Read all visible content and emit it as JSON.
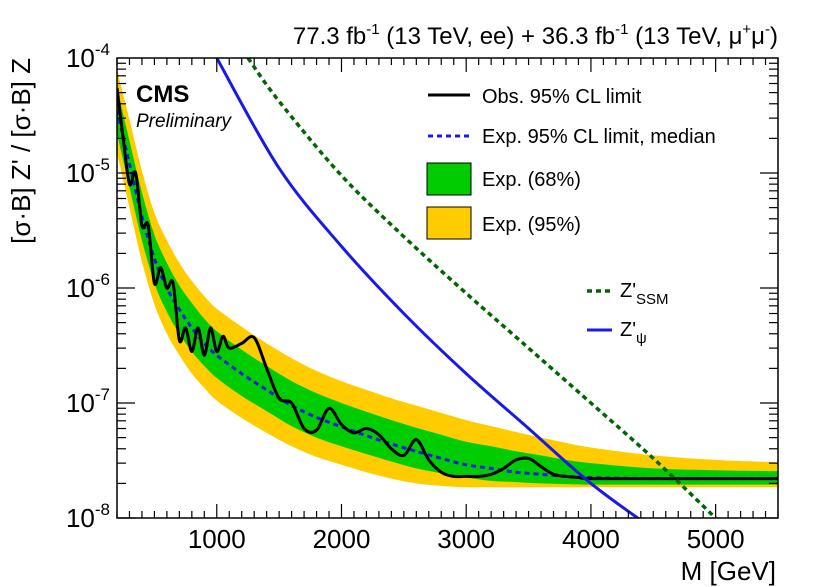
{
  "header": {
    "lumi_ee": "77.3 fb",
    "lumi_ee_exp": "-1",
    "energy_ee": " (13 TeV, ee) + ",
    "lumi_mm": "36.3 fb",
    "lumi_mm_exp": "-1",
    "energy_mm": " (13 TeV, μ",
    "mu_plus": "+",
    "mu_mid": "μ",
    "mu_minus": "-",
    "close": ")"
  },
  "cms_label": "CMS",
  "cms_sublabel": "Preliminary",
  "colors": {
    "observed": "#000000",
    "expected": "#1a1ae6",
    "band68": "#00cc00",
    "band95": "#ffcc00",
    "zssm": "#006600",
    "zpsi": "#1a1ae6"
  },
  "chart_data": {
    "type": "line",
    "xlabel": "M [GeV]",
    "ylabel": "[σ·B] Z' / [σ·B] Z",
    "xlim": [
      200,
      5500
    ],
    "ylim": [
      1e-08,
      0.0001
    ],
    "yscale": "log",
    "xticks": [
      1000,
      2000,
      3000,
      4000,
      5000
    ],
    "yticks": [
      {
        "value": 0.0001,
        "base": "10",
        "exp": "-4"
      },
      {
        "value": 1e-05,
        "base": "10",
        "exp": "-5"
      },
      {
        "value": 1e-06,
        "base": "10",
        "exp": "-6"
      },
      {
        "value": 1e-07,
        "base": "10",
        "exp": "-7"
      },
      {
        "value": 1e-08,
        "base": "10",
        "exp": "-8"
      }
    ],
    "legend": {
      "position": "top-right",
      "entries": [
        {
          "key": "observed",
          "label": "Obs. 95% CL limit"
        },
        {
          "key": "expected",
          "label": "Exp. 95% CL limit, median"
        },
        {
          "key": "band68",
          "label": "Exp. (68%)"
        },
        {
          "key": "band95",
          "label": "Exp. (95%)"
        }
      ]
    },
    "model_legend": [
      {
        "key": "zssm",
        "label": "Z'",
        "sub": "SSM"
      },
      {
        "key": "zpsi",
        "label": "Z'",
        "sub": "ψ"
      }
    ],
    "series": {
      "observed": {
        "x": [
          200,
          250,
          300,
          350,
          400,
          450,
          500,
          550,
          600,
          650,
          700,
          750,
          800,
          850,
          900,
          950,
          1000,
          1050,
          1100,
          1200,
          1300,
          1400,
          1500,
          1600,
          1700,
          1800,
          1900,
          2000,
          2100,
          2200,
          2300,
          2400,
          2500,
          2600,
          2700,
          2800,
          2900,
          3000,
          3100,
          3200,
          3300,
          3400,
          3500,
          3600,
          3700,
          3800,
          3900,
          4000,
          4500,
          5000,
          5500
        ],
        "y": [
          5.5e-05,
          2e-05,
          8e-06,
          1e-05,
          3.5e-06,
          3.5e-06,
          1.1e-06,
          1.5e-06,
          1e-06,
          1.1e-06,
          3.5e-07,
          4.5e-07,
          2.8e-07,
          4.5e-07,
          2.6e-07,
          4.5e-07,
          2.8e-07,
          3.8e-07,
          3e-07,
          3.3e-07,
          3.7e-07,
          2e-07,
          1.1e-07,
          1e-07,
          6e-08,
          5.8e-08,
          9e-08,
          6.5e-08,
          5.5e-08,
          6e-08,
          5.3e-08,
          4e-08,
          3.5e-08,
          4.8e-08,
          3.2e-08,
          2.5e-08,
          2.3e-08,
          2.3e-08,
          2.3e-08,
          2.4e-08,
          2.7e-08,
          3.2e-08,
          3.3e-08,
          2.8e-08,
          2.4e-08,
          2.3e-08,
          2.25e-08,
          2.2e-08,
          2.2e-08,
          2.2e-08,
          2.2e-08
        ]
      },
      "expected": {
        "x": [
          200,
          300,
          400,
          500,
          600,
          700,
          800,
          900,
          1000,
          1200,
          1400,
          1600,
          1800,
          2000,
          2200,
          2400,
          2600,
          2800,
          3000,
          3200,
          3400,
          3600,
          3800,
          4000,
          4500,
          5000,
          5500
        ],
        "y": [
          3.5e-05,
          1.2e-05,
          4.2e-06,
          1.8e-06,
          1e-06,
          6.5e-07,
          4.5e-07,
          3.3e-07,
          2.6e-07,
          1.8e-07,
          1.3e-07,
          9.5e-08,
          7.5e-08,
          6.2e-08,
          5.2e-08,
          4.4e-08,
          3.8e-08,
          3.3e-08,
          2.9e-08,
          2.7e-08,
          2.5e-08,
          2.4e-08,
          2.3e-08,
          2.25e-08,
          2.2e-08,
          2.2e-08,
          2.2e-08
        ]
      },
      "band68": {
        "x": [
          200,
          300,
          400,
          500,
          600,
          700,
          800,
          900,
          1000,
          1200,
          1400,
          1600,
          1800,
          2000,
          2200,
          2400,
          2600,
          2800,
          3000,
          3200,
          3400,
          3600,
          3800,
          4000,
          4500,
          5000,
          5500
        ],
        "low": [
          2.2e-05,
          7.5e-06,
          2.6e-06,
          1.1e-06,
          6.2e-07,
          4e-07,
          2.8e-07,
          2.1e-07,
          1.65e-07,
          1.15e-07,
          8.5e-08,
          6.3e-08,
          5e-08,
          4.2e-08,
          3.6e-08,
          3.1e-08,
          2.7e-08,
          2.45e-08,
          2.25e-08,
          2.1e-08,
          2.05e-08,
          2e-08,
          1.97e-08,
          1.95e-08,
          1.95e-08,
          1.95e-08,
          1.95e-08
        ],
        "high": [
          5.5e-05,
          1.9e-05,
          6.8e-06,
          2.9e-06,
          1.65e-06,
          1.05e-06,
          7.4e-07,
          5.4e-07,
          4.2e-07,
          2.9e-07,
          2.1e-07,
          1.55e-07,
          1.22e-07,
          1e-07,
          8.4e-08,
          7.1e-08,
          6.1e-08,
          5.3e-08,
          4.6e-08,
          4.2e-08,
          3.8e-08,
          3.5e-08,
          3.2e-08,
          3e-08,
          2.7e-08,
          2.6e-08,
          2.55e-08
        ]
      },
      "band95": {
        "x": [
          200,
          300,
          400,
          500,
          600,
          700,
          800,
          900,
          1000,
          1200,
          1400,
          1600,
          1800,
          2000,
          2200,
          2400,
          2600,
          2800,
          3000,
          3200,
          3400,
          3600,
          3800,
          4000,
          4500,
          5000,
          5500
        ],
        "low": [
          1.5e-05,
          5e-06,
          1.7e-06,
          7.2e-07,
          4e-07,
          2.6e-07,
          1.8e-07,
          1.35e-07,
          1.05e-07,
          7.4e-08,
          5.5e-08,
          4.2e-08,
          3.4e-08,
          2.9e-08,
          2.5e-08,
          2.2e-08,
          2e-08,
          1.9e-08,
          1.85e-08,
          1.85e-08,
          1.85e-08,
          1.85e-08,
          1.85e-08,
          1.85e-08,
          1.85e-08,
          1.85e-08,
          1.85e-08
        ],
        "high": [
          8e-05,
          2.9e-05,
          1.05e-05,
          4.5e-06,
          2.6e-06,
          1.65e-06,
          1.15e-06,
          8.5e-07,
          6.6e-07,
          4.6e-07,
          3.3e-07,
          2.45e-07,
          1.9e-07,
          1.55e-07,
          1.3e-07,
          1.1e-07,
          9.5e-08,
          8.2e-08,
          7.1e-08,
          6.3e-08,
          5.6e-08,
          5e-08,
          4.5e-08,
          4.1e-08,
          3.5e-08,
          3.2e-08,
          3.05e-08
        ]
      },
      "zpsi": {
        "x": [
          1000,
          1500,
          2000,
          2500,
          3000,
          3500,
          4000,
          4500
        ],
        "y": [
          0.0001,
          1.1e-05,
          2.3e-06,
          6e-07,
          1.8e-07,
          6e-08,
          2e-08,
          8e-09
        ]
      },
      "zssm": {
        "x": [
          1250,
          1500,
          2000,
          2500,
          3000,
          3500,
          4000,
          4500,
          5000
        ],
        "y": [
          0.0001,
          4.2e-05,
          9.5e-06,
          2.8e-06,
          9e-07,
          3e-07,
          1e-07,
          3.3e-08,
          1e-08
        ]
      }
    }
  }
}
